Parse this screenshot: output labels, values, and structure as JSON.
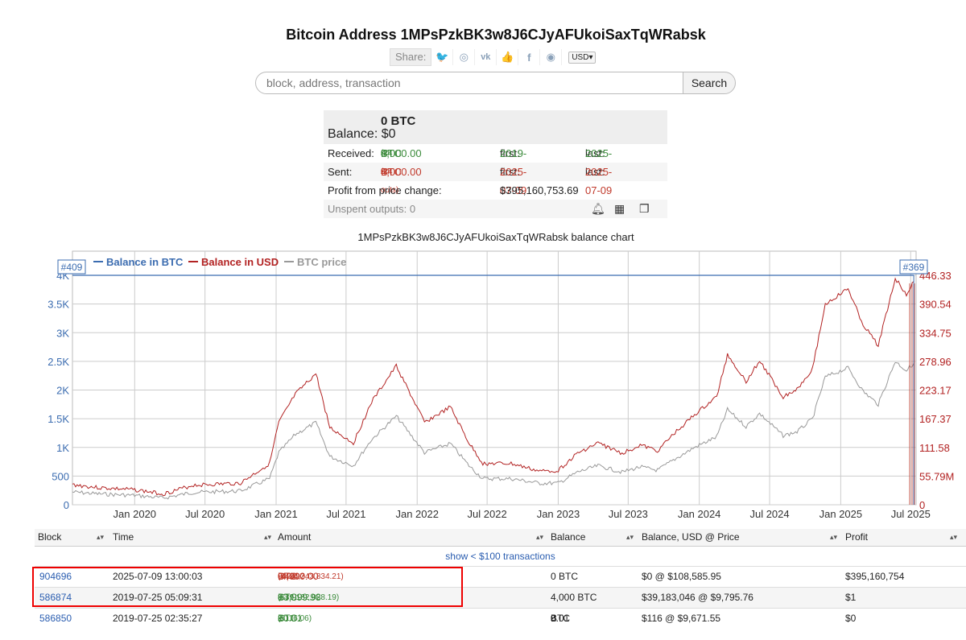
{
  "page": {
    "title": "Bitcoin Address 1MPsPzkBK3w8J6CJyAFUkoiSaxTqWRabsk",
    "share_label": "Share:",
    "share_icons": [
      "twitter-icon",
      "reddit-icon",
      "vk-icon",
      "like-icon",
      "facebook-icon",
      "weibo-icon"
    ],
    "currency": "USD"
  },
  "search": {
    "placeholder": "block, address, transaction",
    "button": "Search"
  },
  "balance": {
    "btc": "0 BTC",
    "label": "Balance:",
    "usd": "$0",
    "received_label": "Received:",
    "received_value": "4,000.00",
    "received_small": "04",
    "received_unit": "BTC",
    "received_count": "(24 ins)",
    "received_first_label": "first:",
    "received_first": "2019-07-24",
    "received_last_label": "last:",
    "received_last": "2025-07-09",
    "sent_label": "Sent:",
    "sent_value": "4,000.00",
    "sent_small": "04",
    "sent_unit": "BTC",
    "sent_count": "(24 outs)",
    "sent_first_label": "first:",
    "sent_first": "2025-07-09",
    "sent_last_label": "last:",
    "sent_last": "2025-07-09",
    "profit_label": "Profit from price change:",
    "profit_value": "$395,160,753.69",
    "unspent": "Unspent outputs: 0"
  },
  "chart_title": "1MPsPzkBK3w8J6CJyAFUkoiSaxTqWRabsk balance chart",
  "chart_data": {
    "type": "line",
    "legend": [
      "Balance in BTC",
      "Balance in USD",
      "BTC price"
    ],
    "legend_placement": "top-left",
    "colors": {
      "btc": "#3b6cb0",
      "usd": "#b22222",
      "price": "#999999"
    },
    "marker_left": "#409",
    "marker_right": "#369",
    "x_ticks": [
      "Jan 2020",
      "Jul 2020",
      "Jan 2021",
      "Jul 2021",
      "Jan 2022",
      "Jul 2022",
      "Jan 2023",
      "Jul 2023",
      "Jan 2024",
      "Jul 2024",
      "Jan 2025",
      "Jul 2025"
    ],
    "x_range": [
      "2019-07-24",
      "2025-07-15"
    ],
    "y_left_ticks": [
      "0",
      "500",
      "1K",
      "1.5K",
      "2K",
      "2.5K",
      "3K",
      "3.5K",
      "4K"
    ],
    "y_left_range": [
      0,
      4000
    ],
    "y_right_ticks": [
      "0",
      "55.79M",
      "111.58",
      "167.37",
      "223.17",
      "278.96",
      "334.75",
      "390.54",
      "446.33"
    ],
    "y_right_range": [
      0,
      446330000
    ],
    "series": [
      {
        "name": "Balance in BTC",
        "points": [
          [
            "2019-07-24",
            4000
          ],
          [
            "2025-07-09",
            4000
          ]
        ]
      },
      {
        "name": "Balance in USD",
        "points": [
          [
            "2019-07-24",
            39000000
          ],
          [
            "2019-10-01",
            33000000
          ],
          [
            "2020-01-01",
            29000000
          ],
          [
            "2020-03-15",
            21000000
          ],
          [
            "2020-06-01",
            38000000
          ],
          [
            "2020-10-01",
            42000000
          ],
          [
            "2020-12-15",
            80000000
          ],
          [
            "2021-01-08",
            160000000
          ],
          [
            "2021-02-20",
            215000000
          ],
          [
            "2021-04-14",
            255000000
          ],
          [
            "2021-05-20",
            150000000
          ],
          [
            "2021-07-20",
            120000000
          ],
          [
            "2021-09-05",
            200000000
          ],
          [
            "2021-11-08",
            270000000
          ],
          [
            "2022-01-20",
            160000000
          ],
          [
            "2022-03-28",
            190000000
          ],
          [
            "2022-05-15",
            120000000
          ],
          [
            "2022-06-20",
            80000000
          ],
          [
            "2022-09-01",
            80000000
          ],
          [
            "2022-11-15",
            65000000
          ],
          [
            "2023-01-01",
            67000000
          ],
          [
            "2023-02-20",
            100000000
          ],
          [
            "2023-04-14",
            120000000
          ],
          [
            "2023-06-15",
            100000000
          ],
          [
            "2023-08-01",
            116000000
          ],
          [
            "2023-09-15",
            105000000
          ],
          [
            "2023-10-30",
            140000000
          ],
          [
            "2023-12-20",
            175000000
          ],
          [
            "2024-02-15",
            210000000
          ],
          [
            "2024-03-14",
            292000000
          ],
          [
            "2024-05-01",
            240000000
          ],
          [
            "2024-06-05",
            280000000
          ],
          [
            "2024-08-05",
            210000000
          ],
          [
            "2024-09-10",
            225000000
          ],
          [
            "2024-10-20",
            265000000
          ],
          [
            "2024-11-22",
            390000000
          ],
          [
            "2025-01-20",
            420000000
          ],
          [
            "2025-02-28",
            350000000
          ],
          [
            "2025-04-08",
            310000000
          ],
          [
            "2025-05-22",
            440000000
          ],
          [
            "2025-06-20",
            410000000
          ],
          [
            "2025-07-09",
            434000000
          ]
        ]
      },
      {
        "name": "BTC price",
        "points": [
          [
            "2019-07-24",
            9800
          ],
          [
            "2019-10-01",
            8300
          ],
          [
            "2020-01-01",
            7200
          ],
          [
            "2020-03-15",
            5200
          ],
          [
            "2020-06-01",
            9500
          ],
          [
            "2020-10-01",
            10600
          ],
          [
            "2020-12-15",
            20000
          ],
          [
            "2021-01-08",
            40000
          ],
          [
            "2021-02-20",
            54000
          ],
          [
            "2021-04-14",
            63000
          ],
          [
            "2021-05-20",
            37000
          ],
          [
            "2021-07-20",
            30000
          ],
          [
            "2021-09-05",
            50000
          ],
          [
            "2021-11-08",
            68000
          ],
          [
            "2022-01-20",
            40000
          ],
          [
            "2022-03-28",
            47000
          ],
          [
            "2022-05-15",
            30000
          ],
          [
            "2022-06-20",
            20000
          ],
          [
            "2022-09-01",
            20000
          ],
          [
            "2022-11-15",
            16500
          ],
          [
            "2023-01-01",
            16600
          ],
          [
            "2023-02-20",
            25000
          ],
          [
            "2023-04-14",
            30000
          ],
          [
            "2023-06-15",
            25000
          ],
          [
            "2023-08-01",
            29000
          ],
          [
            "2023-09-15",
            26500
          ],
          [
            "2023-10-30",
            35000
          ],
          [
            "2023-12-20",
            44000
          ],
          [
            "2024-02-15",
            52000
          ],
          [
            "2024-03-14",
            73000
          ],
          [
            "2024-05-01",
            60000
          ],
          [
            "2024-06-05",
            70000
          ],
          [
            "2024-08-05",
            53000
          ],
          [
            "2024-09-10",
            56000
          ],
          [
            "2024-10-20",
            66000
          ],
          [
            "2024-11-22",
            98000
          ],
          [
            "2025-01-20",
            105000
          ],
          [
            "2025-02-28",
            87000
          ],
          [
            "2025-04-08",
            77000
          ],
          [
            "2025-05-22",
            110000
          ],
          [
            "2025-06-20",
            103000
          ],
          [
            "2025-07-09",
            108586
          ]
        ]
      }
    ]
  },
  "table": {
    "headers": [
      "Block",
      "Time",
      "Amount",
      "Balance",
      "Balance, USD @ Price",
      "Profit"
    ],
    "show_link": "show < $100 transactions",
    "rows": [
      {
        "block": "904696",
        "time": "2025-07-09 13:00:03",
        "amount": "-4,000.00",
        "amount_small": "042497",
        "unit": "BTC",
        "amount_usd": "($434,343,834.21)",
        "balance": "0 BTC",
        "balance_usd": "$0 @ $108,585.95",
        "profit": "$395,160,754"
      },
      {
        "block": "586874",
        "time": "2019-07-25 05:09:31",
        "amount": "+3,999.98",
        "amount_small": "8",
        "unit": "BTC",
        "amount_usd": "($39,182,928.19)",
        "balance": "4,000 BTC",
        "balance_usd": "$39,183,046 @ $9,795.76",
        "profit": "$1"
      },
      {
        "block": "586850",
        "time": "2019-07-25 02:35:27",
        "amount": "+0.01",
        "amount_small": "2",
        "unit": "BTC",
        "amount_usd": "($116.06)",
        "balance": "0.01",
        "balance_small": "2",
        "balance_unit": "BTC",
        "balance_usd": "$116 @ $9,671.55",
        "profit": "$0"
      }
    ]
  }
}
